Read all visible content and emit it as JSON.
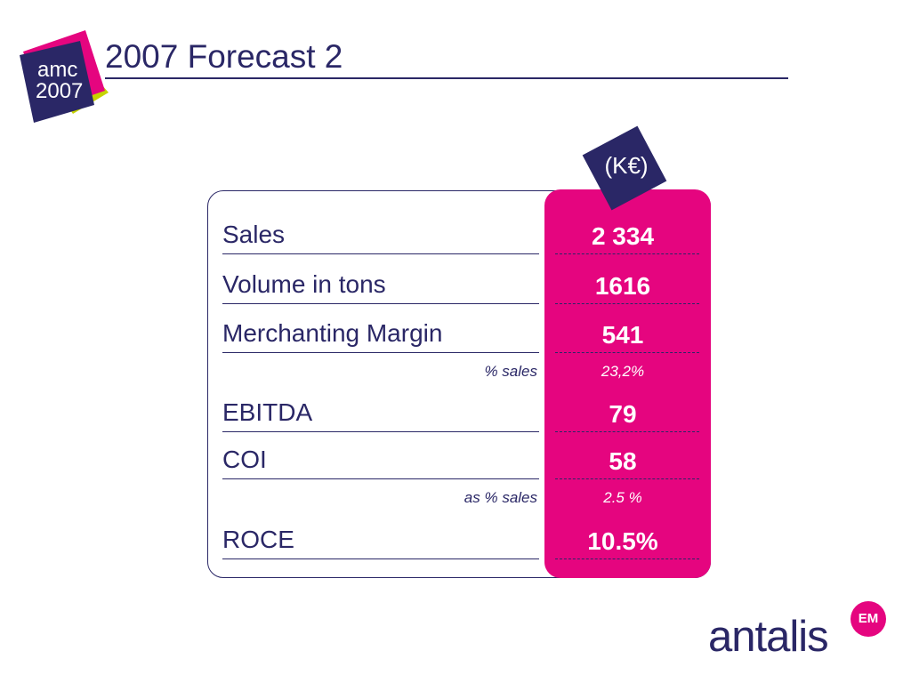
{
  "colors": {
    "navy": "#2a2766",
    "magenta": "#e5057f",
    "lime": "#c6d300"
  },
  "logo": {
    "line1": "amc",
    "line2": "2007"
  },
  "page": {
    "title": "2007 Forecast 2"
  },
  "currency": "(K€)",
  "rows": [
    {
      "label": "Sales",
      "value": "2 334"
    },
    {
      "label": "Volume in tons",
      "value": "1616"
    },
    {
      "label": "Merchanting Margin",
      "value": "541"
    },
    {
      "label": "EBITDA",
      "value": "79"
    },
    {
      "label": "COI",
      "value": "58"
    },
    {
      "label": "ROCE",
      "value": "10.5%"
    }
  ],
  "subrows": [
    {
      "label": "% sales",
      "value": "23,2%"
    },
    {
      "label": "as % sales",
      "value": "2.5 %"
    }
  ],
  "brand": {
    "name": "antalis",
    "badge": "EM"
  }
}
